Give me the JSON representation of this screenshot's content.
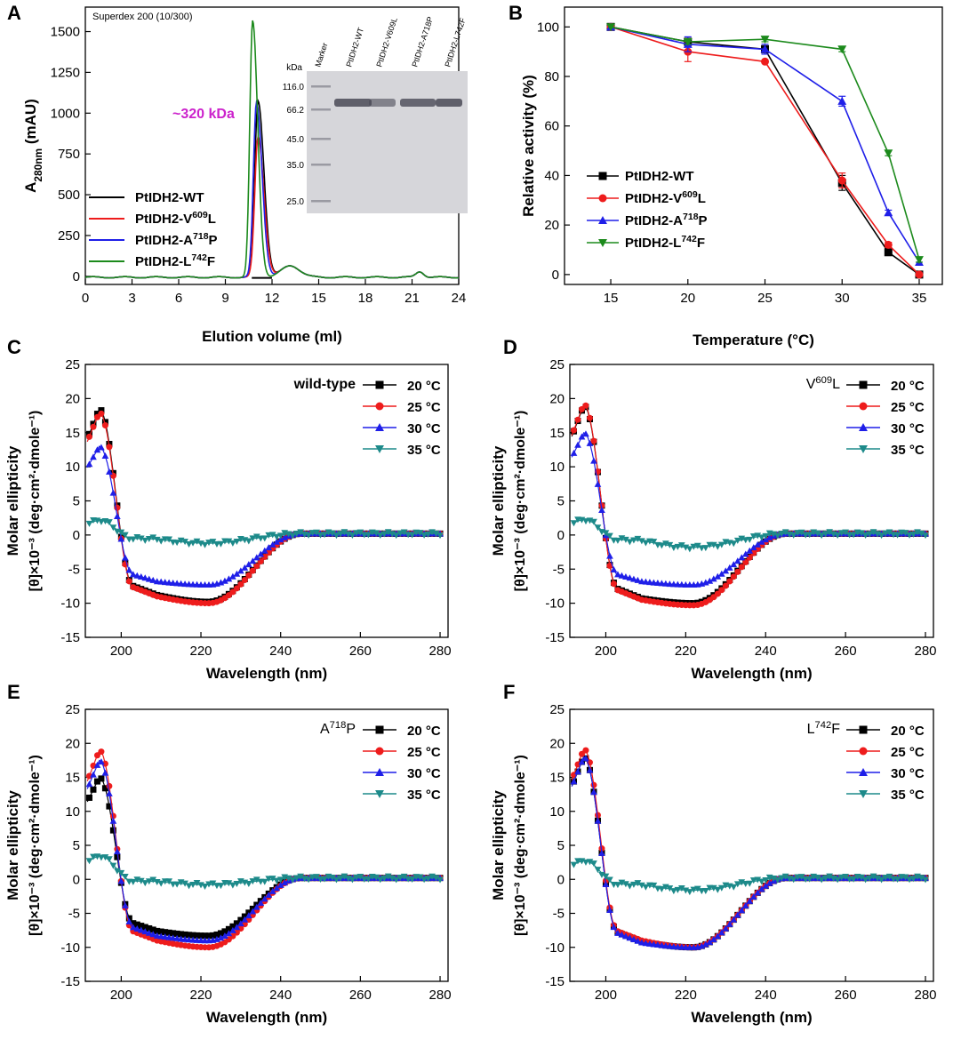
{
  "colors": {
    "black": "#000000",
    "red": "#ee1c1c",
    "blue": "#1f1fe8",
    "green": "#1c8a1c",
    "teal": "#1d8a8a",
    "magenta": "#cc22cc"
  },
  "chart_data": [
    {
      "panel": "A",
      "type": "line",
      "title": "Superdex 200 (10/300)",
      "xlabel": "Elution volume (ml)",
      "ylabel_main": "A",
      "ylabel_sub": "280nm",
      "ylabel_tail": " (mAU)",
      "xlim": [
        0,
        24
      ],
      "ylim": [
        -50,
        1650
      ],
      "xticks": [
        0,
        3,
        6,
        9,
        12,
        15,
        18,
        21,
        24
      ],
      "yticks": [
        0,
        250,
        500,
        750,
        1000,
        1250,
        1500
      ],
      "annotation": "~320 kDa",
      "legend": [
        {
          "prefix": "PtIDH2-WT",
          "sup": "",
          "suffix": "",
          "color": "black"
        },
        {
          "prefix": "PtIDH2-V",
          "sup": "609",
          "suffix": "L",
          "color": "red"
        },
        {
          "prefix": "PtIDH2-A",
          "sup": "718",
          "suffix": "P",
          "color": "blue"
        },
        {
          "prefix": "PtIDH2-L",
          "sup": "742",
          "suffix": "F",
          "color": "green"
        }
      ],
      "series": [
        {
          "name": "PtIDH2-WT",
          "color": "black",
          "peak_x": 11.1,
          "peak_y": 1080,
          "width": 0.38
        },
        {
          "name": "PtIDH2-V609L",
          "color": "red",
          "peak_x": 11.1,
          "peak_y": 860,
          "width": 0.38
        },
        {
          "name": "PtIDH2-A718P",
          "color": "blue",
          "peak_x": 11.0,
          "peak_y": 1070,
          "width": 0.36
        },
        {
          "name": "PtIDH2-L742F",
          "color": "green",
          "peak_x": 10.75,
          "peak_y": 1570,
          "width": 0.33
        }
      ],
      "gel": {
        "lanes": [
          "Marker",
          "PtIDH2-WT",
          "PtIDH2-V609L",
          "PtIDH2-A718P",
          "PtIDH2-L742F"
        ],
        "unit": "kDa",
        "markers": [
          "116.0",
          "66.2",
          "45.0",
          "35.0",
          "25.0"
        ]
      }
    },
    {
      "panel": "B",
      "type": "line",
      "xlabel": "Temperature (°C)",
      "ylabel": "Relative activity (%)",
      "xlim": [
        12,
        36.5
      ],
      "ylim": [
        -4,
        108
      ],
      "xticks": [
        15,
        20,
        25,
        30,
        35
      ],
      "yticks": [
        0,
        20,
        40,
        60,
        80,
        100
      ],
      "x": [
        15,
        20,
        25,
        30,
        33,
        35
      ],
      "series": [
        {
          "name": "PtIDH2-WT",
          "color": "black",
          "marker": "square",
          "values": [
            100,
            94,
            91,
            37,
            9,
            0
          ],
          "err": [
            0,
            1,
            1,
            3,
            1,
            0
          ]
        },
        {
          "name": "PtIDH2-V609L",
          "color": "red",
          "marker": "circle",
          "values": [
            100,
            90,
            86,
            38,
            12,
            0
          ],
          "err": [
            0,
            4,
            0,
            3,
            1,
            0
          ]
        },
        {
          "name": "PtIDH2-A718P",
          "color": "blue",
          "marker": "triangle",
          "values": [
            100,
            93,
            91,
            70,
            25,
            5
          ],
          "err": [
            0,
            3,
            2,
            2,
            1,
            0
          ]
        },
        {
          "name": "PtIDH2-L742F",
          "color": "green",
          "marker": "triangle-down",
          "values": [
            100,
            94,
            95,
            91,
            49,
            6
          ],
          "err": [
            0,
            1,
            1,
            1,
            1,
            1
          ]
        }
      ],
      "legend": [
        {
          "prefix": "PtIDH2-WT",
          "sup": "",
          "suffix": "",
          "color": "black"
        },
        {
          "prefix": "PtIDH2-V",
          "sup": "609",
          "suffix": "L",
          "color": "red"
        },
        {
          "prefix": "PtIDH2-A",
          "sup": "718",
          "suffix": "P",
          "color": "blue"
        },
        {
          "prefix": "PtIDH2-L",
          "sup": "742",
          "suffix": "F",
          "color": "green"
        }
      ]
    },
    {
      "panel": "C",
      "type": "scatter",
      "label_prefix": "wild-type",
      "label_sup": "",
      "label_suffix": "",
      "xlabel": "Wavelength (nm)",
      "ylabel1": "Molar ellipticity",
      "ylabel2": "[θ]×10⁻³ (deg·cm²·dmole⁻¹)",
      "xlim": [
        191,
        282
      ],
      "ylim": [
        -15,
        25
      ],
      "xticks": [
        200,
        220,
        240,
        260,
        280
      ],
      "yticks": [
        -15,
        -10,
        -5,
        0,
        5,
        10,
        15,
        20,
        25
      ],
      "legend_labels": [
        "20 °C",
        "25 °C",
        "30 °C",
        "35 °C"
      ],
      "series": [
        {
          "name": "20 °C",
          "color": "black",
          "marker": "square",
          "peak": 18.5,
          "trough": -9.8,
          "plateau": -8.8
        },
        {
          "name": "25 °C",
          "color": "red",
          "marker": "circle",
          "peak": 18.0,
          "trough": -10.0,
          "plateau": -9.0
        },
        {
          "name": "30 °C",
          "color": "blue",
          "marker": "triangle",
          "peak": 13.0,
          "trough": -7.3,
          "plateau": -6.8
        },
        {
          "name": "35 °C",
          "color": "teal",
          "marker": "triangle-down",
          "peak": 2.2,
          "trough": -1.2,
          "plateau": -0.6
        }
      ]
    },
    {
      "panel": "D",
      "type": "scatter",
      "label_prefix": "V",
      "label_sup": "609",
      "label_suffix": "L",
      "xlabel": "Wavelength (nm)",
      "ylabel1": "Molar ellipticity",
      "ylabel2": "[θ]×10⁻³ (deg·cm²·dmole⁻¹)",
      "xlim": [
        191,
        282
      ],
      "ylim": [
        -15,
        25
      ],
      "xticks": [
        200,
        220,
        240,
        260,
        280
      ],
      "yticks": [
        -15,
        -10,
        -5,
        0,
        5,
        10,
        15,
        20,
        25
      ],
      "legend_labels": [
        "20 °C",
        "25 °C",
        "30 °C",
        "35 °C"
      ],
      "series": [
        {
          "name": "20 °C",
          "color": "black",
          "marker": "square",
          "peak": 19.0,
          "trough": -10.0,
          "plateau": -9.3
        },
        {
          "name": "25 °C",
          "color": "red",
          "marker": "circle",
          "peak": 19.2,
          "trough": -10.3,
          "plateau": -9.5
        },
        {
          "name": "30 °C",
          "color": "blue",
          "marker": "triangle",
          "peak": 15.0,
          "trough": -7.3,
          "plateau": -6.8
        },
        {
          "name": "35 °C",
          "color": "teal",
          "marker": "triangle-down",
          "peak": 2.3,
          "trough": -1.8,
          "plateau": -0.8
        }
      ]
    },
    {
      "panel": "E",
      "type": "scatter",
      "label_prefix": "A",
      "label_sup": "718",
      "label_suffix": "P",
      "xlabel": "Wavelength (nm)",
      "ylabel1": "Molar ellipticity",
      "ylabel2": "[θ]×10⁻³ (deg·cm²·dmole⁻¹)",
      "xlim": [
        191,
        282
      ],
      "ylim": [
        -15,
        25
      ],
      "xticks": [
        200,
        220,
        240,
        260,
        280
      ],
      "yticks": [
        -15,
        -10,
        -5,
        0,
        5,
        10,
        15,
        20,
        25
      ],
      "legend_labels": [
        "20 °C",
        "25 °C",
        "30 °C",
        "35 °C"
      ],
      "series": [
        {
          "name": "20 °C",
          "color": "black",
          "marker": "square",
          "peak": 15.0,
          "trough": -8.3,
          "plateau": -7.6
        },
        {
          "name": "25 °C",
          "color": "red",
          "marker": "circle",
          "peak": 19.0,
          "trough": -10.0,
          "plateau": -9.0
        },
        {
          "name": "30 °C",
          "color": "blue",
          "marker": "triangle",
          "peak": 17.5,
          "trough": -9.0,
          "plateau": -8.3
        },
        {
          "name": "35 °C",
          "color": "teal",
          "marker": "triangle-down",
          "peak": 3.5,
          "trough": -0.8,
          "plateau": -0.3
        }
      ]
    },
    {
      "panel": "F",
      "type": "scatter",
      "label_prefix": "L",
      "label_sup": "742",
      "label_suffix": "F",
      "xlabel": "Wavelength (nm)",
      "ylabel1": "Molar ellipticity",
      "ylabel2": "[θ]×10⁻³ (deg·cm²·dmole⁻¹)",
      "xlim": [
        191,
        282
      ],
      "ylim": [
        -15,
        25
      ],
      "xticks": [
        200,
        220,
        240,
        260,
        280
      ],
      "yticks": [
        -15,
        -10,
        -5,
        0,
        5,
        10,
        15,
        20,
        25
      ],
      "legend_labels": [
        "20 °C",
        "25 °C",
        "30 °C",
        "35 °C"
      ],
      "series": [
        {
          "name": "20 °C",
          "color": "black",
          "marker": "square",
          "peak": 18.0,
          "trough": -10.0,
          "plateau": -9.2
        },
        {
          "name": "25 °C",
          "color": "red",
          "marker": "circle",
          "peak": 19.2,
          "trough": -10.0,
          "plateau": -9.0
        },
        {
          "name": "30 °C",
          "color": "blue",
          "marker": "triangle",
          "peak": 18.0,
          "trough": -10.0,
          "plateau": -9.3
        },
        {
          "name": "35 °C",
          "color": "teal",
          "marker": "triangle-down",
          "peak": 2.8,
          "trough": -1.6,
          "plateau": -0.8
        }
      ]
    }
  ]
}
